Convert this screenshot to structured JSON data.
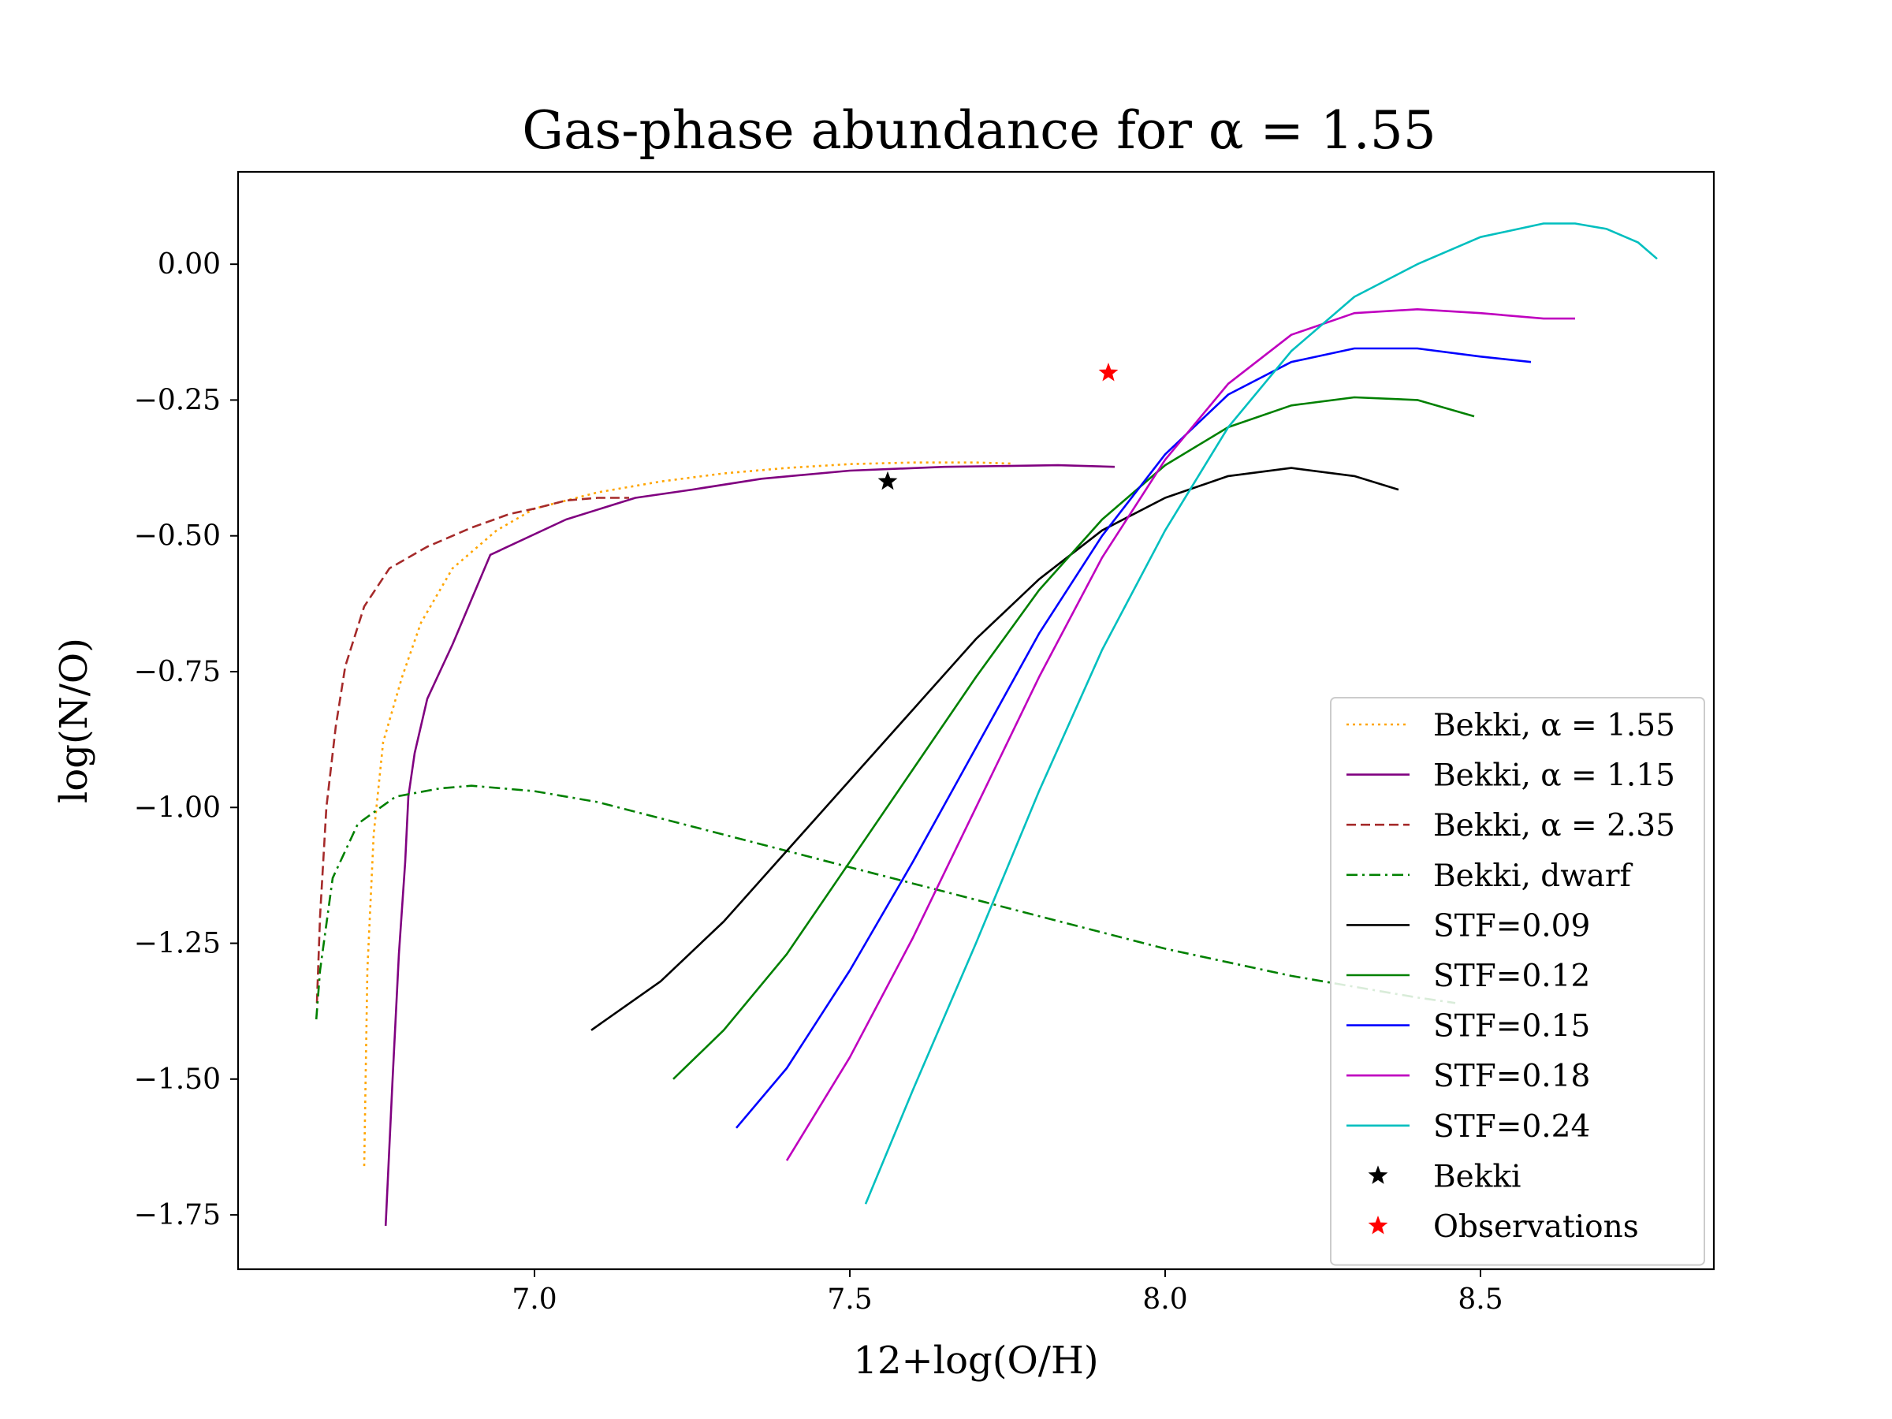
{
  "chart_data": {
    "type": "line",
    "title": "Gas-phase abundance for α = 1.55",
    "xlabel": "12+log(O/H)",
    "ylabel": "log(N/O)",
    "xlim": [
      6.53,
      8.87
    ],
    "ylim": [
      -1.85,
      0.17
    ],
    "xticks": [
      7.0,
      7.5,
      8.0,
      8.5
    ],
    "xtick_labels": [
      "7.0",
      "7.5",
      "8.0",
      "8.5"
    ],
    "yticks": [
      0.0,
      -0.25,
      -0.5,
      -0.75,
      -1.0,
      -1.25,
      -1.5,
      -1.75
    ],
    "ytick_labels": [
      "0.00",
      "−0.25",
      "−0.50",
      "−0.75",
      "−1.00",
      "−1.25",
      "−1.50",
      "−1.75"
    ],
    "grid": false,
    "legend_position": "lower-right",
    "series": [
      {
        "name": "Bekki, α = 1.55",
        "color": "#ffa500",
        "dash": "dotted",
        "points": [
          [
            6.73,
            -1.66
          ],
          [
            6.735,
            -1.3
          ],
          [
            6.745,
            -1.05
          ],
          [
            6.76,
            -0.88
          ],
          [
            6.79,
            -0.76
          ],
          [
            6.82,
            -0.66
          ],
          [
            6.87,
            -0.56
          ],
          [
            6.94,
            -0.49
          ],
          [
            7.0,
            -0.45
          ],
          [
            7.1,
            -0.42
          ],
          [
            7.2,
            -0.4
          ],
          [
            7.3,
            -0.385
          ],
          [
            7.4,
            -0.375
          ],
          [
            7.5,
            -0.368
          ],
          [
            7.6,
            -0.365
          ],
          [
            7.7,
            -0.365
          ],
          [
            7.76,
            -0.367
          ]
        ]
      },
      {
        "name": "Bekki, α = 1.15",
        "color": "#800080",
        "dash": "solid",
        "points": [
          [
            6.764,
            -1.77
          ],
          [
            6.775,
            -1.5
          ],
          [
            6.785,
            -1.27
          ],
          [
            6.795,
            -1.1
          ],
          [
            6.8,
            -0.98
          ],
          [
            6.81,
            -0.9
          ],
          [
            6.83,
            -0.8
          ],
          [
            6.87,
            -0.7
          ],
          [
            6.93,
            -0.535
          ],
          [
            7.05,
            -0.47
          ],
          [
            7.16,
            -0.43
          ],
          [
            7.25,
            -0.415
          ],
          [
            7.36,
            -0.395
          ],
          [
            7.5,
            -0.38
          ],
          [
            7.65,
            -0.373
          ],
          [
            7.83,
            -0.37
          ],
          [
            7.92,
            -0.373
          ]
        ]
      },
      {
        "name": "Bekki, α = 2.35",
        "color": "#a52a2a",
        "dash": "dashed",
        "points": [
          [
            6.655,
            -1.36
          ],
          [
            6.66,
            -1.2
          ],
          [
            6.67,
            -1.0
          ],
          [
            6.685,
            -0.85
          ],
          [
            6.7,
            -0.74
          ],
          [
            6.73,
            -0.63
          ],
          [
            6.77,
            -0.56
          ],
          [
            6.83,
            -0.52
          ],
          [
            6.9,
            -0.485
          ],
          [
            6.96,
            -0.46
          ],
          [
            7.0,
            -0.45
          ],
          [
            7.05,
            -0.435
          ],
          [
            7.1,
            -0.43
          ],
          [
            7.15,
            -0.43
          ]
        ]
      },
      {
        "name": "Bekki, dwarf",
        "color": "#008000",
        "dash": "dashdot",
        "points": [
          [
            6.654,
            -1.39
          ],
          [
            6.66,
            -1.3
          ],
          [
            6.68,
            -1.13
          ],
          [
            6.72,
            -1.03
          ],
          [
            6.78,
            -0.98
          ],
          [
            6.85,
            -0.965
          ],
          [
            6.9,
            -0.96
          ],
          [
            7.0,
            -0.97
          ],
          [
            7.1,
            -0.99
          ],
          [
            7.2,
            -1.02
          ],
          [
            7.3,
            -1.05
          ],
          [
            7.4,
            -1.08
          ],
          [
            7.5,
            -1.11
          ],
          [
            7.6,
            -1.14
          ],
          [
            7.7,
            -1.17
          ],
          [
            7.8,
            -1.2
          ],
          [
            7.9,
            -1.23
          ],
          [
            8.0,
            -1.26
          ],
          [
            8.1,
            -1.285
          ],
          [
            8.2,
            -1.31
          ],
          [
            8.3,
            -1.33
          ],
          [
            8.4,
            -1.35
          ],
          [
            8.46,
            -1.36
          ]
        ]
      },
      {
        "name": "STF=0.09",
        "color": "#000000",
        "dash": "solid",
        "points": [
          [
            7.09,
            -1.41
          ],
          [
            7.2,
            -1.32
          ],
          [
            7.3,
            -1.21
          ],
          [
            7.4,
            -1.08
          ],
          [
            7.5,
            -0.95
          ],
          [
            7.6,
            -0.82
          ],
          [
            7.7,
            -0.69
          ],
          [
            7.8,
            -0.58
          ],
          [
            7.9,
            -0.49
          ],
          [
            8.0,
            -0.43
          ],
          [
            8.1,
            -0.39
          ],
          [
            8.2,
            -0.375
          ],
          [
            8.3,
            -0.39
          ],
          [
            8.37,
            -0.415
          ]
        ]
      },
      {
        "name": "STF=0.12",
        "color": "#008000",
        "dash": "solid",
        "points": [
          [
            7.22,
            -1.5
          ],
          [
            7.3,
            -1.41
          ],
          [
            7.4,
            -1.27
          ],
          [
            7.5,
            -1.1
          ],
          [
            7.6,
            -0.93
          ],
          [
            7.7,
            -0.76
          ],
          [
            7.8,
            -0.6
          ],
          [
            7.9,
            -0.47
          ],
          [
            8.0,
            -0.37
          ],
          [
            8.1,
            -0.3
          ],
          [
            8.2,
            -0.26
          ],
          [
            8.3,
            -0.245
          ],
          [
            8.4,
            -0.25
          ],
          [
            8.49,
            -0.28
          ]
        ]
      },
      {
        "name": "STF=0.15",
        "color": "#0000ff",
        "dash": "solid",
        "points": [
          [
            7.32,
            -1.59
          ],
          [
            7.4,
            -1.48
          ],
          [
            7.5,
            -1.3
          ],
          [
            7.6,
            -1.1
          ],
          [
            7.7,
            -0.89
          ],
          [
            7.8,
            -0.68
          ],
          [
            7.9,
            -0.5
          ],
          [
            8.0,
            -0.35
          ],
          [
            8.1,
            -0.24
          ],
          [
            8.2,
            -0.18
          ],
          [
            8.3,
            -0.155
          ],
          [
            8.4,
            -0.155
          ],
          [
            8.5,
            -0.17
          ],
          [
            8.58,
            -0.18
          ]
        ]
      },
      {
        "name": "STF=0.18",
        "color": "#bf00bf",
        "dash": "solid",
        "points": [
          [
            7.4,
            -1.65
          ],
          [
            7.5,
            -1.46
          ],
          [
            7.6,
            -1.24
          ],
          [
            7.7,
            -1.0
          ],
          [
            7.8,
            -0.76
          ],
          [
            7.9,
            -0.54
          ],
          [
            8.0,
            -0.36
          ],
          [
            8.1,
            -0.22
          ],
          [
            8.2,
            -0.13
          ],
          [
            8.3,
            -0.09
          ],
          [
            8.4,
            -0.083
          ],
          [
            8.5,
            -0.09
          ],
          [
            8.6,
            -0.1
          ],
          [
            8.65,
            -0.1
          ]
        ]
      },
      {
        "name": "STF=0.24",
        "color": "#00bfbf",
        "dash": "solid",
        "points": [
          [
            7.525,
            -1.73
          ],
          [
            7.6,
            -1.52
          ],
          [
            7.7,
            -1.25
          ],
          [
            7.8,
            -0.97
          ],
          [
            7.9,
            -0.71
          ],
          [
            8.0,
            -0.49
          ],
          [
            8.1,
            -0.3
          ],
          [
            8.2,
            -0.16
          ],
          [
            8.3,
            -0.06
          ],
          [
            8.4,
            0.0
          ],
          [
            8.5,
            0.05
          ],
          [
            8.6,
            0.075
          ],
          [
            8.65,
            0.075
          ],
          [
            8.7,
            0.065
          ],
          [
            8.75,
            0.04
          ],
          [
            8.78,
            0.01
          ]
        ]
      }
    ],
    "scatter": [
      {
        "name": "Bekki",
        "color": "#000000",
        "marker": "star",
        "points": [
          [
            7.56,
            -0.4
          ]
        ]
      },
      {
        "name": "Observations",
        "color": "#ff0000",
        "marker": "star",
        "points": [
          [
            7.91,
            -0.2
          ]
        ]
      }
    ]
  }
}
